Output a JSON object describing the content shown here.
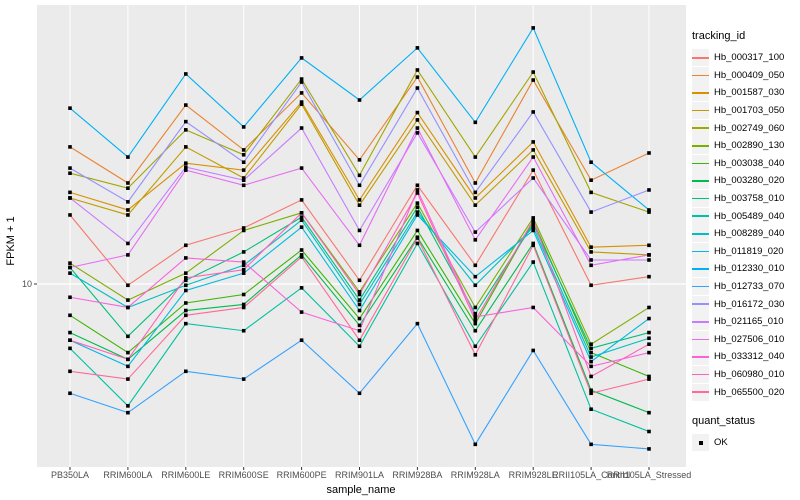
{
  "chart_data": {
    "type": "line",
    "title": "",
    "xlabel": "sample_name",
    "ylabel": "FPKM + 1",
    "y_scale": "log10",
    "y_breaks": [
      10
    ],
    "ylim_approx": [
      2.4,
      90
    ],
    "grid": "major-on-grey-panel",
    "legend_position": "right",
    "color_legend_title": "tracking_id",
    "point_legend": {
      "title": "quant_status",
      "items": [
        "OK"
      ],
      "shape": "black-square"
    },
    "panel_color": "#EBEBEB",
    "categories": [
      "PB350LA",
      "RRIM600LA",
      "RRIM600LE",
      "RRIM600SE",
      "RRIM600PE",
      "RRIM901LA",
      "RRIM928BA",
      "RRIM928LA",
      "RRIM928LE",
      "RRII105LA_Control",
      "RRII105LA_Stressed"
    ],
    "series": [
      {
        "name": "Hb_000317_100",
        "color": "#F8766D",
        "values": [
          17.3,
          9.9,
          13.6,
          15.6,
          19.5,
          10.3,
          21.9,
          11.6,
          24.7,
          9.9,
          10.6
        ]
      },
      {
        "name": "Hb_000409_050",
        "color": "#EA8331",
        "values": [
          29.7,
          22.3,
          41.4,
          29.0,
          45.6,
          26.8,
          51.7,
          22.3,
          50.5,
          22.8,
          28.3
        ]
      },
      {
        "name": "Hb_001587_030",
        "color": "#D89000",
        "values": [
          20.7,
          18.0,
          26.1,
          24.7,
          42.4,
          19.5,
          39.0,
          19.8,
          30.9,
          13.4,
          13.6
        ]
      },
      {
        "name": "Hb_001703_050",
        "color": "#C09B00",
        "values": [
          19.8,
          17.3,
          29.7,
          23.2,
          41.7,
          18.7,
          36.8,
          18.7,
          29.0,
          12.9,
          12.6
        ]
      },
      {
        "name": "Hb_002749_060",
        "color": "#A3A500",
        "values": [
          24.1,
          21.4,
          34.0,
          27.9,
          50.9,
          23.7,
          54.7,
          27.4,
          53.8,
          20.7,
          17.7
        ]
      },
      {
        "name": "Hb_002890_130",
        "color": "#7CAE00",
        "values": [
          11.8,
          8.8,
          10.9,
          15.3,
          17.6,
          9.4,
          19.0,
          8.3,
          16.9,
          6.2,
          8.3
        ]
      },
      {
        "name": "Hb_003038_040",
        "color": "#39B600",
        "values": [
          7.8,
          5.8,
          8.6,
          9.2,
          13.1,
          7.6,
          15.3,
          7.3,
          16.5,
          5.8,
          4.8
        ]
      },
      {
        "name": "Hb_003280_020",
        "color": "#00BB4E",
        "values": [
          6.8,
          5.5,
          8.1,
          8.5,
          12.6,
          7.2,
          14.5,
          6.9,
          13.8,
          4.3,
          3.6
        ]
      },
      {
        "name": "Hb_003758_010",
        "color": "#00BF7D",
        "values": [
          11.4,
          6.6,
          10.3,
          12.9,
          17.0,
          8.8,
          18.4,
          7.9,
          16.1,
          6.0,
          6.8
        ]
      },
      {
        "name": "Hb_005489_040",
        "color": "#00C1A3",
        "values": [
          6.0,
          3.8,
          7.3,
          6.9,
          9.7,
          6.1,
          13.8,
          6.1,
          11.9,
          3.7,
          3.1
        ]
      },
      {
        "name": "Hb_008289_040",
        "color": "#00BFC4",
        "values": [
          10.9,
          8.3,
          9.9,
          11.6,
          16.6,
          8.5,
          17.7,
          9.9,
          15.7,
          5.6,
          6.5
        ]
      },
      {
        "name": "Hb_011819_020",
        "color": "#00BAE0",
        "values": [
          6.4,
          5.2,
          9.5,
          10.9,
          15.7,
          8.1,
          17.3,
          10.6,
          15.3,
          5.4,
          7.6
        ]
      },
      {
        "name": "Hb_012330_010",
        "color": "#00B0F6",
        "values": [
          40.4,
          27.4,
          53.0,
          34.8,
          60.2,
          43.1,
          65.2,
          36.1,
          76.4,
          26.3,
          18.0
        ]
      },
      {
        "name": "Hb_012733_070",
        "color": "#35A2FF",
        "values": [
          4.2,
          3.6,
          5.0,
          4.7,
          6.4,
          4.2,
          7.3,
          2.8,
          5.9,
          2.8,
          2.7
        ]
      },
      {
        "name": "Hb_016172_030",
        "color": "#9590FF",
        "values": [
          25.1,
          19.2,
          36.3,
          26.3,
          49.7,
          21.9,
          47.4,
          20.7,
          39.2,
          17.7,
          21.1
        ]
      },
      {
        "name": "Hb_021165_010",
        "color": "#C77CFF",
        "values": [
          19.8,
          13.8,
          25.3,
          22.8,
          34.5,
          15.3,
          33.2,
          15.1,
          23.2,
          12.1,
          12.1
        ]
      },
      {
        "name": "Hb_027506_010",
        "color": "#E76BF3",
        "values": [
          11.4,
          12.6,
          24.7,
          21.9,
          25.1,
          13.6,
          34.5,
          14.2,
          27.4,
          11.6,
          12.6
        ]
      },
      {
        "name": "Hb_033312_040",
        "color": "#FA62DB",
        "values": [
          9.0,
          8.3,
          12.3,
          11.9,
          8.0,
          6.9,
          21.1,
          7.7,
          8.3,
          5.2,
          5.8
        ]
      },
      {
        "name": "Hb_060980_010",
        "color": "#FF62BC",
        "values": [
          6.4,
          5.5,
          10.5,
          11.2,
          17.6,
          9.2,
          20.6,
          7.5,
          16.6,
          4.8,
          6.2
        ]
      },
      {
        "name": "Hb_065500_020",
        "color": "#FF6A98",
        "values": [
          5.0,
          4.7,
          7.8,
          8.3,
          12.4,
          6.4,
          14.4,
          5.7,
          13.6,
          4.2,
          4.7
        ]
      }
    ]
  }
}
